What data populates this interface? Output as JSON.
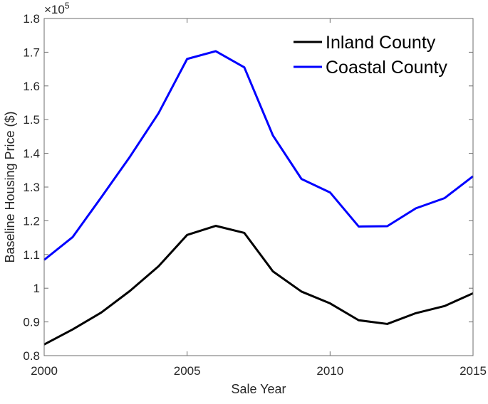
{
  "chart_data": {
    "type": "line",
    "title": "",
    "xlabel": "Sale Year",
    "ylabel": "Baseline Housing Price ($)",
    "y_multiplier_label": "×10",
    "y_multiplier_exponent": "5",
    "xlim": [
      2000,
      2015
    ],
    "ylim": [
      0.8,
      1.8
    ],
    "x_ticks": [
      2000,
      2005,
      2010,
      2015
    ],
    "x_tick_labels": [
      "2000",
      "2005",
      "2010",
      "2015"
    ],
    "y_ticks": [
      0.8,
      0.9,
      1.0,
      1.1,
      1.2,
      1.3,
      1.4,
      1.5,
      1.6,
      1.7,
      1.8
    ],
    "y_tick_labels": [
      "0.8",
      "0.9",
      "1",
      "1.1",
      "1.2",
      "1.3",
      "1.4",
      "1.5",
      "1.6",
      "1.7",
      "1.8"
    ],
    "grid": false,
    "legend_position": "top-right",
    "x": [
      2000,
      2001,
      2002,
      2003,
      2004,
      2005,
      2006,
      2007,
      2008,
      2009,
      2010,
      2011,
      2012,
      2013,
      2014,
      2015
    ],
    "series": [
      {
        "name": "Inland County",
        "color": "#000000",
        "values": [
          0.833,
          0.878,
          0.928,
          0.992,
          1.065,
          1.158,
          1.185,
          1.164,
          1.05,
          0.99,
          0.955,
          0.905,
          0.894,
          0.926,
          0.947,
          0.985
        ]
      },
      {
        "name": "Coastal County",
        "color": "#0000ff",
        "values": [
          1.084,
          1.152,
          1.27,
          1.39,
          1.519,
          1.68,
          1.703,
          1.655,
          1.453,
          1.324,
          1.284,
          1.183,
          1.184,
          1.237,
          1.267,
          1.332
        ]
      }
    ]
  }
}
